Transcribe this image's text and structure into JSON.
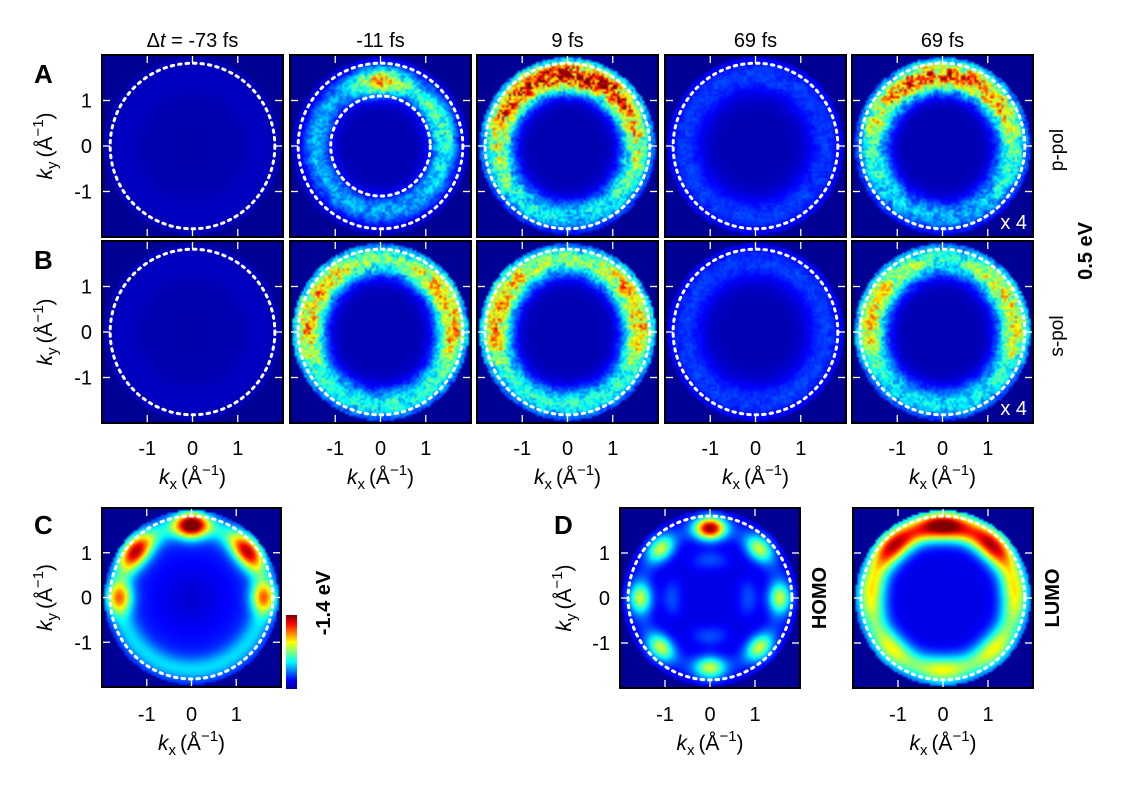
{
  "chart_data": {
    "type": "heatmap",
    "colormap": "jet",
    "description_units": "photoemission momentum maps",
    "x_label": {
      "symbol": "k",
      "sub": "x",
      "unit": "(Å",
      "exp": "−1",
      "close": ")"
    },
    "y_label": {
      "symbol": "k",
      "sub": "y",
      "unit": "(Å",
      "exp": "−1",
      "close": ")"
    },
    "x_ticks": [
      {
        "v": -1,
        "t": "-1"
      },
      {
        "v": 0,
        "t": "0"
      },
      {
        "v": 1,
        "t": "1"
      }
    ],
    "y_ticks": [
      {
        "v": 1,
        "t": "1"
      },
      {
        "v": 0,
        "t": "0"
      },
      {
        "v": -1,
        "t": "-1"
      }
    ],
    "xlim": [
      -2.0,
      2.0
    ],
    "ylim": [
      -2.0,
      2.0
    ],
    "horizon_radius": 1.82,
    "inner_circle_radius": 1.1,
    "delta_t_prefix": "Δ",
    "delta_t_symbol": "t",
    "columns": [
      {
        "title": "-73 fs",
        "has_delta_prefix": true
      },
      {
        "title": "-11 fs",
        "has_delta_prefix": false
      },
      {
        "title": "9 fs",
        "has_delta_prefix": false
      },
      {
        "title": "69 fs",
        "has_delta_prefix": false
      },
      {
        "title": "69 fs",
        "has_delta_prefix": false
      }
    ],
    "rows": [
      {
        "letter": "A",
        "polarization": "p-pol",
        "maps": [
          {
            "pattern": "empty",
            "intensity": 0.03
          },
          {
            "pattern": "ring_inner_dashed",
            "intensity": 0.55
          },
          {
            "pattern": "ring_top",
            "intensity": 0.85
          },
          {
            "pattern": "ring_weak",
            "intensity": 0.12
          },
          {
            "pattern": "ring_top",
            "intensity": 0.7,
            "scale": "x 4"
          }
        ]
      },
      {
        "letter": "B",
        "polarization": "s-pol",
        "maps": [
          {
            "pattern": "empty",
            "intensity": 0.03
          },
          {
            "pattern": "ring_full",
            "intensity": 0.6
          },
          {
            "pattern": "ring_full",
            "intensity": 0.6
          },
          {
            "pattern": "ring_weak",
            "intensity": 0.12
          },
          {
            "pattern": "ring_full",
            "intensity": 0.55,
            "scale": "x 4"
          }
        ]
      }
    ],
    "energy_label_rows": "0.5 eV",
    "panel_C": {
      "letter": "C",
      "pattern": "lobes_top",
      "colorbar_label": "-1.4 eV"
    },
    "panel_D": {
      "letter": "D",
      "maps": [
        {
          "label": "HOMO",
          "pattern": "homo"
        },
        {
          "label": "LUMO",
          "pattern": "lumo"
        }
      ]
    }
  }
}
